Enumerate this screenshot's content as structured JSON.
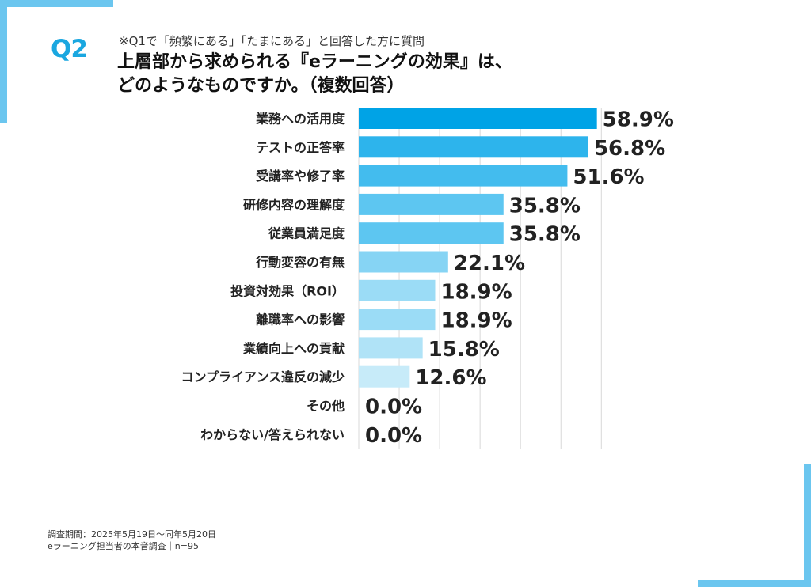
{
  "header": {
    "question_label": "Q2",
    "note": "※Q1で「頻繁にある」「たまにある」と回答した方に質問",
    "title_line1": "上層部から求められる『eラーニングの効果』は、",
    "title_line2": "どのようなものですか。（複数回答）"
  },
  "footer": {
    "line1": "調査期間：2025年5月19日〜同年5月20日",
    "line2": "eラーニング担当者の本音調査｜n=95"
  },
  "chart_data": {
    "type": "bar",
    "orientation": "horizontal",
    "categories": [
      "業務への活用度",
      "テストの正答率",
      "受講率や修了率",
      "研修内容の理解度",
      "従業員満足度",
      "行動変容の有無",
      "投資対効果（ROI）",
      "離職率への影響",
      "業績向上への貢献",
      "コンプライアンス違反の減少",
      "その他",
      "わからない/答えられない"
    ],
    "values": [
      58.9,
      56.8,
      51.6,
      35.8,
      35.8,
      22.1,
      18.9,
      18.9,
      15.8,
      12.6,
      0.0,
      0.0
    ],
    "value_labels": [
      "58.9%",
      "56.8%",
      "51.6%",
      "35.8%",
      "35.8%",
      "22.1%",
      "18.9%",
      "18.9%",
      "15.8%",
      "12.6%",
      "0.0%",
      "0.0%"
    ],
    "unit": "%",
    "xlim": [
      0,
      60
    ],
    "grid": true,
    "colors": [
      "#00a3e6",
      "#2db4ec",
      "#43bcee",
      "#5dc6f1",
      "#5dc6f1",
      "#86d4f4",
      "#9bdcf6",
      "#9bdcf6",
      "#b0e3f7",
      "#c7ebf9",
      "#d9f1fb",
      "#d9f1fb"
    ],
    "grid_color": "#d8d8d8"
  },
  "theme": {
    "accent": "#6bc6ef",
    "question_color": "#1aa7e0"
  }
}
